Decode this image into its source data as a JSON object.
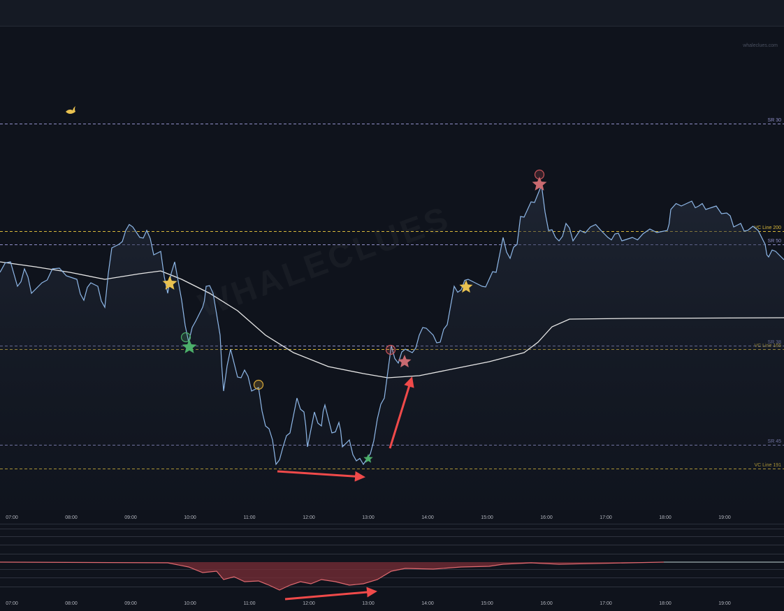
{
  "site": "whaleclues.com",
  "watermark": "WHALECLUES",
  "levels": [
    {
      "label": "SR 30",
      "kind": "sr"
    },
    {
      "label": "VC Line 200",
      "kind": "vc"
    },
    {
      "label": "SR 50",
      "kind": "sr"
    },
    {
      "label": "SR 38",
      "kind": "sr"
    },
    {
      "label": "VC Line 165",
      "kind": "vc"
    },
    {
      "label": "SR 45",
      "kind": "sr"
    },
    {
      "label": "VC Line 191",
      "kind": "vc"
    }
  ],
  "main_axis": {
    "labels": [
      "07:00",
      "08:00",
      "09:00",
      "10:00",
      "11:00",
      "12:00",
      "13:00",
      "14:00",
      "15:00",
      "16:00",
      "17:00",
      "18:00",
      "19:00"
    ]
  },
  "indicator_axis": {
    "labels": [
      "07:00",
      "08:00",
      "09:00",
      "10:00",
      "11:00",
      "12:00",
      "13:00",
      "14:00",
      "15:00",
      "16:00",
      "17:00",
      "18:00",
      "19:00"
    ]
  }
}
